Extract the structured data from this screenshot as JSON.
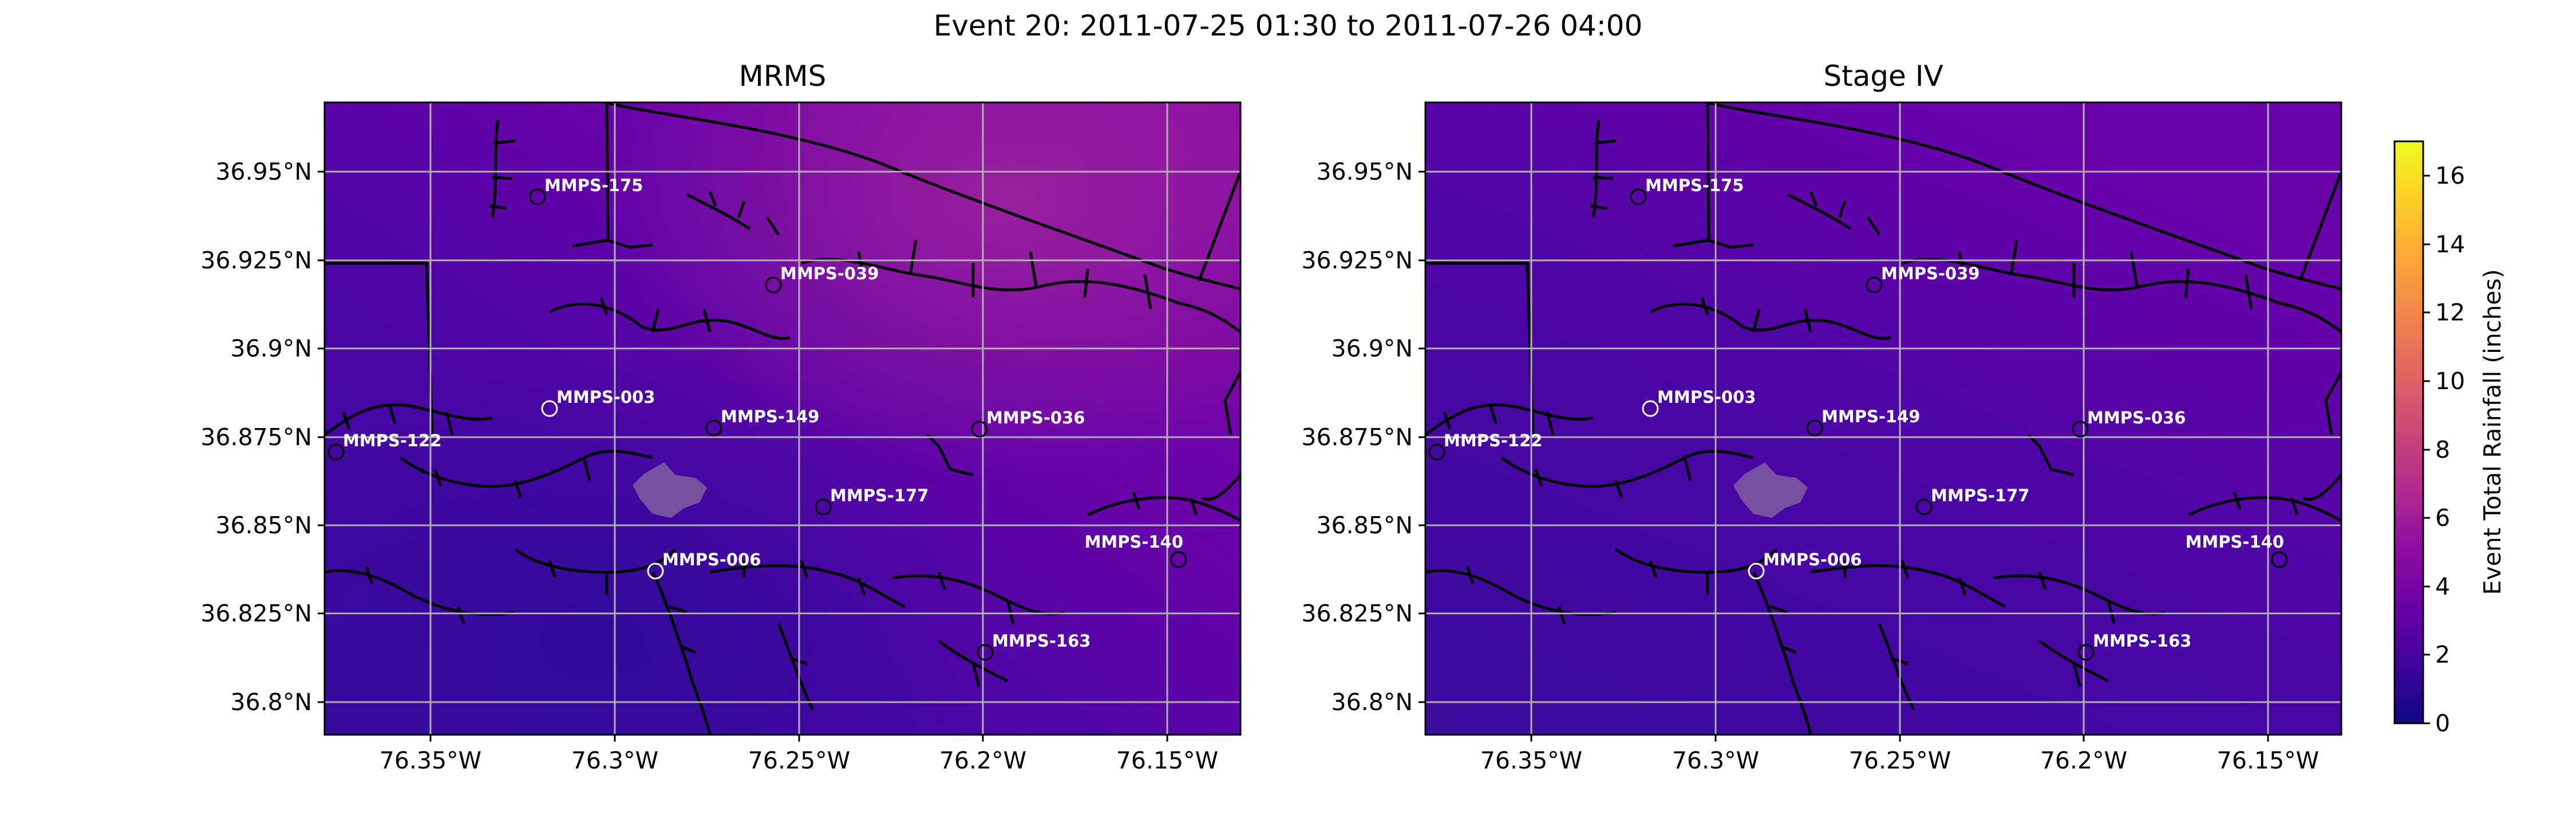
{
  "suptitle": "Event 20: 2011-07-25 01:30 to 2011-07-26 04:00",
  "colorbar": {
    "label": "Event Total Rainfall (inches)",
    "min": 0,
    "max": 17,
    "ticks": [
      0,
      2,
      4,
      6,
      8,
      10,
      12,
      14,
      16
    ],
    "colormap": "plasma",
    "stops": [
      "#0d0887",
      "#41049d",
      "#6a00a8",
      "#8f0da4",
      "#b12a90",
      "#cc4778",
      "#e16462",
      "#f2844b",
      "#fca636",
      "#fcce25",
      "#f0f921"
    ]
  },
  "chart_data": [
    {
      "type": "heatmap",
      "title": "MRMS",
      "xlim": [
        -76.377,
        -76.108
      ],
      "ylim": [
        36.791,
        36.97
      ],
      "x_ticks": [
        -76.35,
        -76.3,
        -76.25,
        -76.2,
        -76.15
      ],
      "x_tick_labels": [
        "76.35°W",
        "76.3°W",
        "76.25°W",
        "76.2°W",
        "76.15°W"
      ],
      "y_ticks": [
        36.8,
        36.825,
        36.85,
        36.875,
        36.9,
        36.925,
        36.95
      ],
      "y_tick_labels": [
        "36.8°N",
        "36.825°N",
        "36.85°N",
        "36.875°N",
        "36.9°N",
        "36.925°N",
        "36.95°N"
      ],
      "grid": true,
      "stations": [
        {
          "name": "MMPS-175",
          "lon": -76.316,
          "lat": 36.943,
          "edge": "#000000"
        },
        {
          "name": "MMPS-039",
          "lon": -76.25,
          "lat": 36.918,
          "edge": "#000000"
        },
        {
          "name": "MMPS-003",
          "lon": -76.313,
          "lat": 36.883,
          "edge": "#ffffff"
        },
        {
          "name": "MMPS-149",
          "lon": -76.266,
          "lat": 36.877,
          "edge": "#000000"
        },
        {
          "name": "MMPS-036",
          "lon": -76.191,
          "lat": 36.877,
          "edge": "#000000"
        },
        {
          "name": "MMPS-122",
          "lon": -76.374,
          "lat": 36.871,
          "edge": "#000000"
        },
        {
          "name": "MMPS-177",
          "lon": -76.235,
          "lat": 36.855,
          "edge": "#000000"
        },
        {
          "name": "MMPS-140",
          "lon": -76.126,
          "lat": 36.84,
          "edge": "#000000"
        },
        {
          "name": "MMPS-006",
          "lon": -76.283,
          "lat": 36.837,
          "edge": "#ffffff"
        },
        {
          "name": "MMPS-163",
          "lon": -76.19,
          "lat": 36.814,
          "edge": "#000000"
        }
      ]
    },
    {
      "type": "heatmap",
      "title": "Stage IV",
      "xlim": [
        -76.377,
        -76.108
      ],
      "ylim": [
        36.791,
        36.97
      ],
      "x_ticks": [
        -76.35,
        -76.3,
        -76.25,
        -76.2,
        -76.15
      ],
      "x_tick_labels": [
        "76.35°W",
        "76.3°W",
        "76.25°W",
        "76.2°W",
        "76.15°W"
      ],
      "y_ticks": [
        36.8,
        36.825,
        36.85,
        36.875,
        36.9,
        36.925,
        36.95
      ],
      "y_tick_labels": [
        "36.8°N",
        "36.825°N",
        "36.85°N",
        "36.875°N",
        "36.9°N",
        "36.925°N",
        "36.95°N"
      ],
      "grid": true,
      "stations": [
        {
          "name": "MMPS-175",
          "lon": -76.316,
          "lat": 36.943,
          "edge": "#000000"
        },
        {
          "name": "MMPS-039",
          "lon": -76.25,
          "lat": 36.918,
          "edge": "#000000"
        },
        {
          "name": "MMPS-003",
          "lon": -76.313,
          "lat": 36.883,
          "edge": "#ffffff"
        },
        {
          "name": "MMPS-149",
          "lon": -76.266,
          "lat": 36.877,
          "edge": "#000000"
        },
        {
          "name": "MMPS-036",
          "lon": -76.191,
          "lat": 36.877,
          "edge": "#000000"
        },
        {
          "name": "MMPS-122",
          "lon": -76.374,
          "lat": 36.871,
          "edge": "#000000"
        },
        {
          "name": "MMPS-177",
          "lon": -76.235,
          "lat": 36.855,
          "edge": "#000000"
        },
        {
          "name": "MMPS-140",
          "lon": -76.126,
          "lat": 36.84,
          "edge": "#000000"
        },
        {
          "name": "MMPS-006",
          "lon": -76.283,
          "lat": 36.837,
          "edge": "#ffffff"
        },
        {
          "name": "MMPS-163",
          "lon": -76.19,
          "lat": 36.814,
          "edge": "#000000"
        }
      ]
    }
  ]
}
